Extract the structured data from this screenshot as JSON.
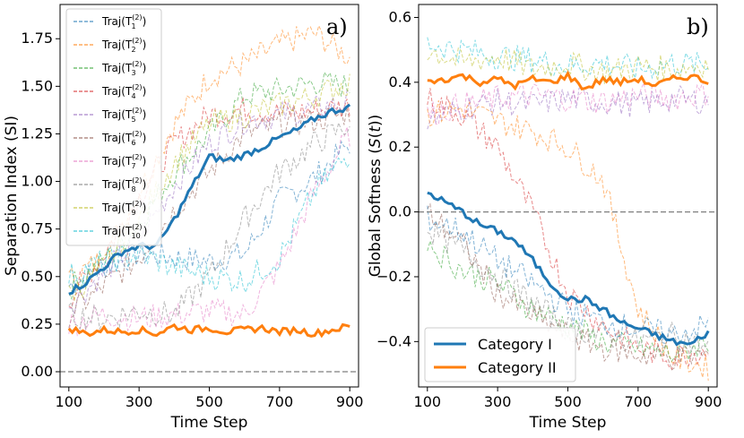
{
  "chart_data": [
    {
      "panel": "a",
      "type": "line",
      "tag": "a)",
      "xlabel": "Time Step",
      "ylabel": "Separation Index (SI)",
      "xlim": [
        75,
        925
      ],
      "ylim": [
        -0.08,
        1.93
      ],
      "xticks": [
        100,
        300,
        500,
        700,
        900
      ],
      "yticks": [
        0.0,
        0.25,
        0.5,
        0.75,
        1.0,
        1.25,
        1.5,
        1.75
      ],
      "ytick_labels": [
        "0.00",
        "0.25",
        "0.50",
        "0.75",
        "1.00",
        "1.25",
        "1.50",
        "1.75"
      ],
      "reference_line": 0.0,
      "legend": {
        "position": "top-left",
        "entries": [
          {
            "base": "Traj(T",
            "sup": "(2)",
            "sub": "1",
            "close": ")",
            "color": "#1f77b4"
          },
          {
            "base": "Traj(T",
            "sup": "(2)",
            "sub": "2",
            "close": ")",
            "color": "#ff7f0e"
          },
          {
            "base": "Traj(T",
            "sup": "(2)",
            "sub": "3",
            "close": ")",
            "color": "#2ca02c"
          },
          {
            "base": "Traj(T",
            "sup": "(2)",
            "sub": "4",
            "close": ")",
            "color": "#d62728"
          },
          {
            "base": "Traj(T",
            "sup": "(2)",
            "sub": "5",
            "close": ")",
            "color": "#9467bd"
          },
          {
            "base": "Traj(T",
            "sup": "(2)",
            "sub": "6",
            "close": ")",
            "color": "#8c564b"
          },
          {
            "base": "Traj(T",
            "sup": "(2)",
            "sub": "7",
            "close": ")",
            "color": "#e377c2"
          },
          {
            "base": "Traj(T",
            "sup": "(2)",
            "sub": "8",
            "close": ")",
            "color": "#7f7f7f"
          },
          {
            "base": "Traj(T",
            "sup": "(2)",
            "sub": "9",
            "close": ")",
            "color": "#bcbd22"
          },
          {
            "base": "Traj(T",
            "sup": "(2)",
            "sub": "10",
            "close": ")",
            "color": "#17becf"
          }
        ]
      },
      "bold_series": [
        {
          "name": "Category I mean",
          "color": "#1f77b4",
          "x": [
            100,
            150,
            200,
            250,
            300,
            350,
            400,
            450,
            500,
            550,
            600,
            650,
            700,
            750,
            800,
            850,
            900
          ],
          "y": [
            0.42,
            0.47,
            0.55,
            0.63,
            0.66,
            0.66,
            0.8,
            0.97,
            1.13,
            1.11,
            1.14,
            1.18,
            1.23,
            1.27,
            1.33,
            1.37,
            1.39
          ]
        },
        {
          "name": "Category II mean",
          "color": "#ff7f0e",
          "x": [
            100,
            150,
            200,
            250,
            300,
            350,
            400,
            450,
            500,
            550,
            600,
            650,
            700,
            750,
            800,
            850,
            900
          ],
          "y": [
            0.23,
            0.2,
            0.22,
            0.21,
            0.22,
            0.2,
            0.24,
            0.22,
            0.23,
            0.21,
            0.22,
            0.23,
            0.21,
            0.22,
            0.2,
            0.22,
            0.24
          ]
        }
      ],
      "faint_series": [
        {
          "name": "Traj 1",
          "color": "#1f77b4",
          "x": [
            100,
            200,
            300,
            400,
            500,
            600,
            700,
            800,
            900
          ],
          "y": [
            0.45,
            0.55,
            0.62,
            0.6,
            0.58,
            0.62,
            0.9,
            1.02,
            1.2
          ]
        },
        {
          "name": "Traj 2",
          "color": "#ff7f0e",
          "x": [
            100,
            200,
            300,
            400,
            500,
            600,
            700,
            800,
            900
          ],
          "y": [
            0.48,
            0.6,
            0.95,
            1.3,
            1.55,
            1.62,
            1.72,
            1.78,
            1.65
          ]
        },
        {
          "name": "Traj 3",
          "color": "#2ca02c",
          "x": [
            100,
            200,
            300,
            400,
            500,
            600,
            700,
            800,
            900
          ],
          "y": [
            0.44,
            0.58,
            0.78,
            1.05,
            1.25,
            1.45,
            1.48,
            1.52,
            1.5
          ]
        },
        {
          "name": "Traj 4",
          "color": "#d62728",
          "x": [
            100,
            200,
            300,
            400,
            500,
            600,
            700,
            800,
            900
          ],
          "y": [
            0.38,
            0.62,
            0.92,
            1.2,
            1.35,
            1.38,
            1.36,
            1.37,
            1.4
          ]
        },
        {
          "name": "Traj 5",
          "color": "#9467bd",
          "x": [
            100,
            200,
            300,
            400,
            500,
            600,
            700,
            800,
            900
          ],
          "y": [
            0.35,
            0.52,
            0.7,
            0.98,
            1.2,
            1.32,
            1.35,
            1.38,
            1.42
          ]
        },
        {
          "name": "Traj 6",
          "color": "#8c564b",
          "x": [
            100,
            200,
            300,
            400,
            500,
            600,
            700,
            800,
            900
          ],
          "y": [
            0.3,
            0.45,
            0.6,
            0.85,
            1.05,
            1.25,
            1.3,
            1.32,
            1.36
          ]
        },
        {
          "name": "Traj 7",
          "color": "#e377c2",
          "x": [
            100,
            200,
            300,
            400,
            500,
            600,
            700,
            800,
            900
          ],
          "y": [
            0.25,
            0.3,
            0.28,
            0.3,
            0.32,
            0.3,
            0.55,
            0.95,
            1.25
          ]
        },
        {
          "name": "Traj 8",
          "color": "#7f7f7f",
          "x": [
            100,
            200,
            300,
            400,
            500,
            600,
            700,
            800,
            900
          ],
          "y": [
            0.3,
            0.28,
            0.32,
            0.3,
            0.5,
            0.8,
            1.05,
            1.2,
            1.3
          ]
        },
        {
          "name": "Traj 9",
          "color": "#bcbd22",
          "x": [
            100,
            200,
            300,
            400,
            500,
            600,
            700,
            800,
            900
          ],
          "y": [
            0.4,
            0.55,
            0.8,
            1.1,
            1.3,
            1.35,
            1.4,
            1.45,
            1.52
          ]
        },
        {
          "name": "Traj 10",
          "color": "#17becf",
          "x": [
            100,
            200,
            300,
            400,
            500,
            600,
            700,
            800,
            900
          ],
          "y": [
            0.5,
            0.58,
            0.62,
            0.55,
            0.5,
            0.48,
            0.6,
            0.95,
            1.15
          ]
        }
      ]
    },
    {
      "panel": "b",
      "type": "line",
      "tag": "b)",
      "xlabel": "Time Step",
      "ylabel_parts": {
        "pre": "Global Softness (",
        "italic": "S",
        "mid": "(",
        "italic2": "t",
        "post": "))"
      },
      "xlim": [
        75,
        925
      ],
      "ylim": [
        -0.54,
        0.64
      ],
      "xticks": [
        100,
        300,
        500,
        700,
        900
      ],
      "yticks": [
        -0.4,
        -0.2,
        0.0,
        0.2,
        0.4,
        0.6
      ],
      "ytick_labels": [
        "−0.4",
        "−0.2",
        "0.0",
        "0.2",
        "0.4",
        "0.6"
      ],
      "reference_line": 0.0,
      "legend": {
        "position": "bottom-left",
        "entries": [
          {
            "label": "Category I",
            "color": "#1f77b4"
          },
          {
            "label": "Category II",
            "color": "#ff7f0e"
          }
        ]
      },
      "bold_series": [
        {
          "name": "Category I",
          "color": "#1f77b4",
          "x": [
            100,
            150,
            200,
            250,
            300,
            350,
            400,
            450,
            500,
            550,
            600,
            650,
            700,
            750,
            800,
            850,
            900
          ],
          "y": [
            0.06,
            0.03,
            0.0,
            -0.04,
            -0.06,
            -0.09,
            -0.15,
            -0.22,
            -0.27,
            -0.27,
            -0.3,
            -0.34,
            -0.36,
            -0.38,
            -0.4,
            -0.41,
            -0.37
          ]
        },
        {
          "name": "Category II",
          "color": "#ff7f0e",
          "x": [
            100,
            150,
            200,
            250,
            300,
            350,
            400,
            450,
            500,
            550,
            600,
            650,
            700,
            750,
            800,
            850,
            900
          ],
          "y": [
            0.4,
            0.41,
            0.42,
            0.4,
            0.41,
            0.39,
            0.41,
            0.4,
            0.42,
            0.38,
            0.41,
            0.4,
            0.41,
            0.39,
            0.41,
            0.42,
            0.4
          ]
        }
      ],
      "faint_series": [
        {
          "name": "upper 1",
          "color": "#17becf",
          "x": [
            100,
            200,
            300,
            400,
            500,
            600,
            700,
            800,
            900
          ],
          "y": [
            0.52,
            0.5,
            0.48,
            0.47,
            0.45,
            0.46,
            0.44,
            0.46,
            0.45
          ]
        },
        {
          "name": "upper 2",
          "color": "#bcbd22",
          "x": [
            100,
            200,
            300,
            400,
            500,
            600,
            700,
            800,
            900
          ],
          "y": [
            0.5,
            0.46,
            0.48,
            0.44,
            0.46,
            0.43,
            0.45,
            0.44,
            0.46
          ]
        },
        {
          "name": "upper 3",
          "color": "#e377c2",
          "x": [
            100,
            200,
            300,
            400,
            500,
            600,
            700,
            800,
            900
          ],
          "y": [
            0.3,
            0.33,
            0.35,
            0.36,
            0.35,
            0.34,
            0.36,
            0.35,
            0.37
          ]
        },
        {
          "name": "upper 4",
          "color": "#9467bd",
          "x": [
            100,
            200,
            300,
            400,
            500,
            600,
            700,
            800,
            900
          ],
          "y": [
            0.28,
            0.32,
            0.34,
            0.33,
            0.35,
            0.34,
            0.33,
            0.35,
            0.34
          ]
        },
        {
          "name": "falling 1",
          "color": "#d62728",
          "x": [
            100,
            200,
            300,
            400,
            500,
            600,
            700,
            800,
            900
          ],
          "y": [
            0.35,
            0.3,
            0.2,
            0.0,
            -0.25,
            -0.35,
            -0.42,
            -0.45,
            -0.42
          ]
        },
        {
          "name": "falling 2",
          "color": "#ff7f0e",
          "x": [
            100,
            200,
            300,
            400,
            500,
            600,
            700,
            800,
            900
          ],
          "y": [
            0.3,
            0.32,
            0.28,
            0.25,
            0.2,
            0.1,
            -0.3,
            -0.45,
            -0.48
          ]
        },
        {
          "name": "lower 1",
          "color": "#2ca02c",
          "x": [
            100,
            200,
            300,
            400,
            500,
            600,
            700,
            800,
            900
          ],
          "y": [
            -0.1,
            -0.18,
            -0.22,
            -0.3,
            -0.35,
            -0.4,
            -0.42,
            -0.44,
            -0.4
          ]
        },
        {
          "name": "lower 2",
          "color": "#7f7f7f",
          "x": [
            100,
            200,
            300,
            400,
            500,
            600,
            700,
            800,
            900
          ],
          "y": [
            -0.05,
            -0.12,
            -0.2,
            -0.28,
            -0.36,
            -0.38,
            -0.4,
            -0.38,
            -0.42
          ]
        },
        {
          "name": "lower 3",
          "color": "#8c564b",
          "x": [
            100,
            200,
            300,
            400,
            500,
            600,
            700,
            800,
            900
          ],
          "y": [
            0.0,
            -0.1,
            -0.25,
            -0.32,
            -0.38,
            -0.42,
            -0.44,
            -0.45,
            -0.44
          ]
        },
        {
          "name": "lower 4",
          "color": "#1f77b4",
          "x": [
            100,
            200,
            300,
            400,
            500,
            600,
            700,
            800,
            900
          ],
          "y": [
            -0.02,
            -0.06,
            -0.15,
            -0.22,
            -0.3,
            -0.34,
            -0.36,
            -0.38,
            -0.35
          ]
        }
      ]
    }
  ]
}
